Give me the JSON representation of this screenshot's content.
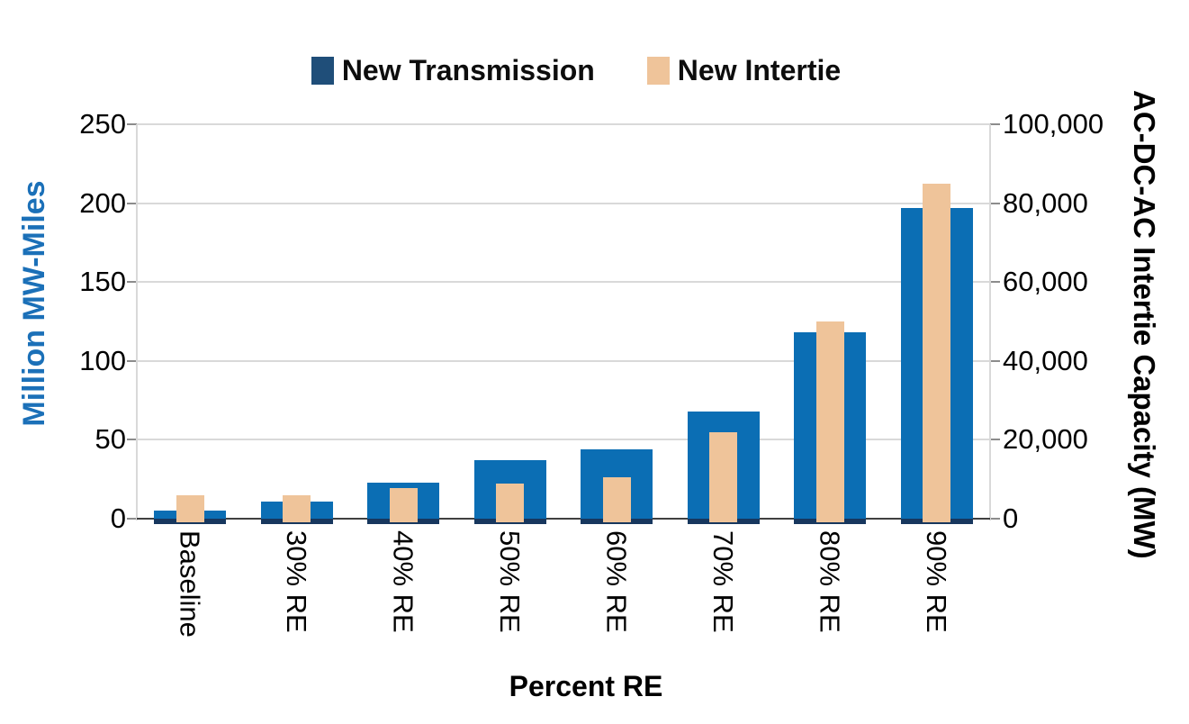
{
  "chart_data": {
    "type": "bar",
    "title": "",
    "xlabel": "Percent RE",
    "categories": [
      "Baseline",
      "30% RE",
      "40% RE",
      "50% RE",
      "60% RE",
      "70% RE",
      "80% RE",
      "90% RE"
    ],
    "series": [
      {
        "name": "New Transmission",
        "axis": "left",
        "units": "Million MW-Miles",
        "color": "#0b6eb4",
        "base_strip_color": "#17375e",
        "values": [
          5,
          11,
          23,
          37,
          44,
          68,
          118,
          197
        ]
      },
      {
        "name": "New Intertie",
        "axis": "right",
        "units": "MW",
        "color": "#efc49a",
        "values": [
          6000,
          6000,
          7700,
          9000,
          10600,
          22000,
          50000,
          85000
        ]
      }
    ],
    "left_axis": {
      "label": "Million MW-Miles",
      "label_color": "#1b70b8",
      "min": 0,
      "max": 250,
      "ticks": [
        "0",
        "50",
        "100",
        "150",
        "200",
        "250"
      ]
    },
    "right_axis": {
      "label": "AC-DC-AC Intertie Capacity (MW)",
      "label_color": "#000000",
      "min": 0,
      "max": 100000,
      "ticks": [
        "0",
        "20,000",
        "40,000",
        "60,000",
        "80,000",
        "100,000"
      ]
    },
    "legend": [
      {
        "label": "New Transmission",
        "marker_color": "#1f4e79"
      },
      {
        "label": "New Intertie",
        "marker_color": "#efc49a"
      }
    ],
    "legend_position": "top",
    "grid": true,
    "colors": {
      "gridline": "#d9d9d9",
      "x_axis_line": "#404040",
      "side_axis_line": "#d9d9d9",
      "tick_mark": "#8c8c8c"
    }
  }
}
